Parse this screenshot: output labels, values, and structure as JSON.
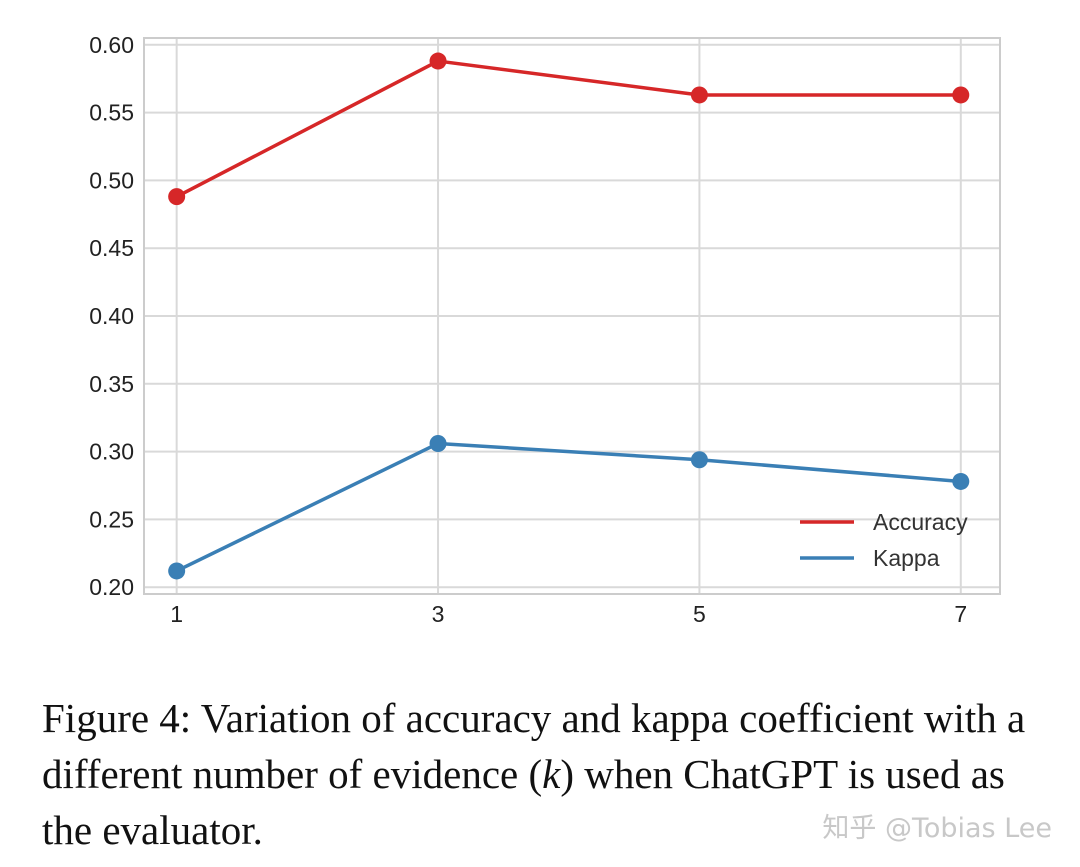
{
  "chart_data": {
    "type": "line",
    "title": "",
    "xlabel": "",
    "ylabel": "",
    "x": [
      1,
      3,
      5,
      7
    ],
    "x_tick_labels": [
      "1",
      "3",
      "5",
      "7"
    ],
    "xlim": [
      0.75,
      7.3
    ],
    "ylim": [
      0.195,
      0.605
    ],
    "y_ticks": [
      0.2,
      0.25,
      0.3,
      0.35,
      0.4,
      0.45,
      0.5,
      0.55,
      0.6
    ],
    "y_tick_labels": [
      "0.20",
      "0.25",
      "0.30",
      "0.35",
      "0.40",
      "0.45",
      "0.50",
      "0.55",
      "0.60"
    ],
    "grid": true,
    "legend_position": "lower-right",
    "series": [
      {
        "name": "Accuracy",
        "color": "#d62728",
        "values": [
          0.488,
          0.588,
          0.563,
          0.563
        ]
      },
      {
        "name": "Kappa",
        "color": "#3a7fb5",
        "values": [
          0.212,
          0.306,
          0.294,
          0.278
        ]
      }
    ]
  },
  "caption": {
    "part1": "Figure 4:  Variation of accuracy and kappa coefficient with a different number of evidence (",
    "math": "k",
    "part2": ") when ChatGPT is used as the evaluator."
  },
  "watermark": "知乎 @Tobias Lee"
}
